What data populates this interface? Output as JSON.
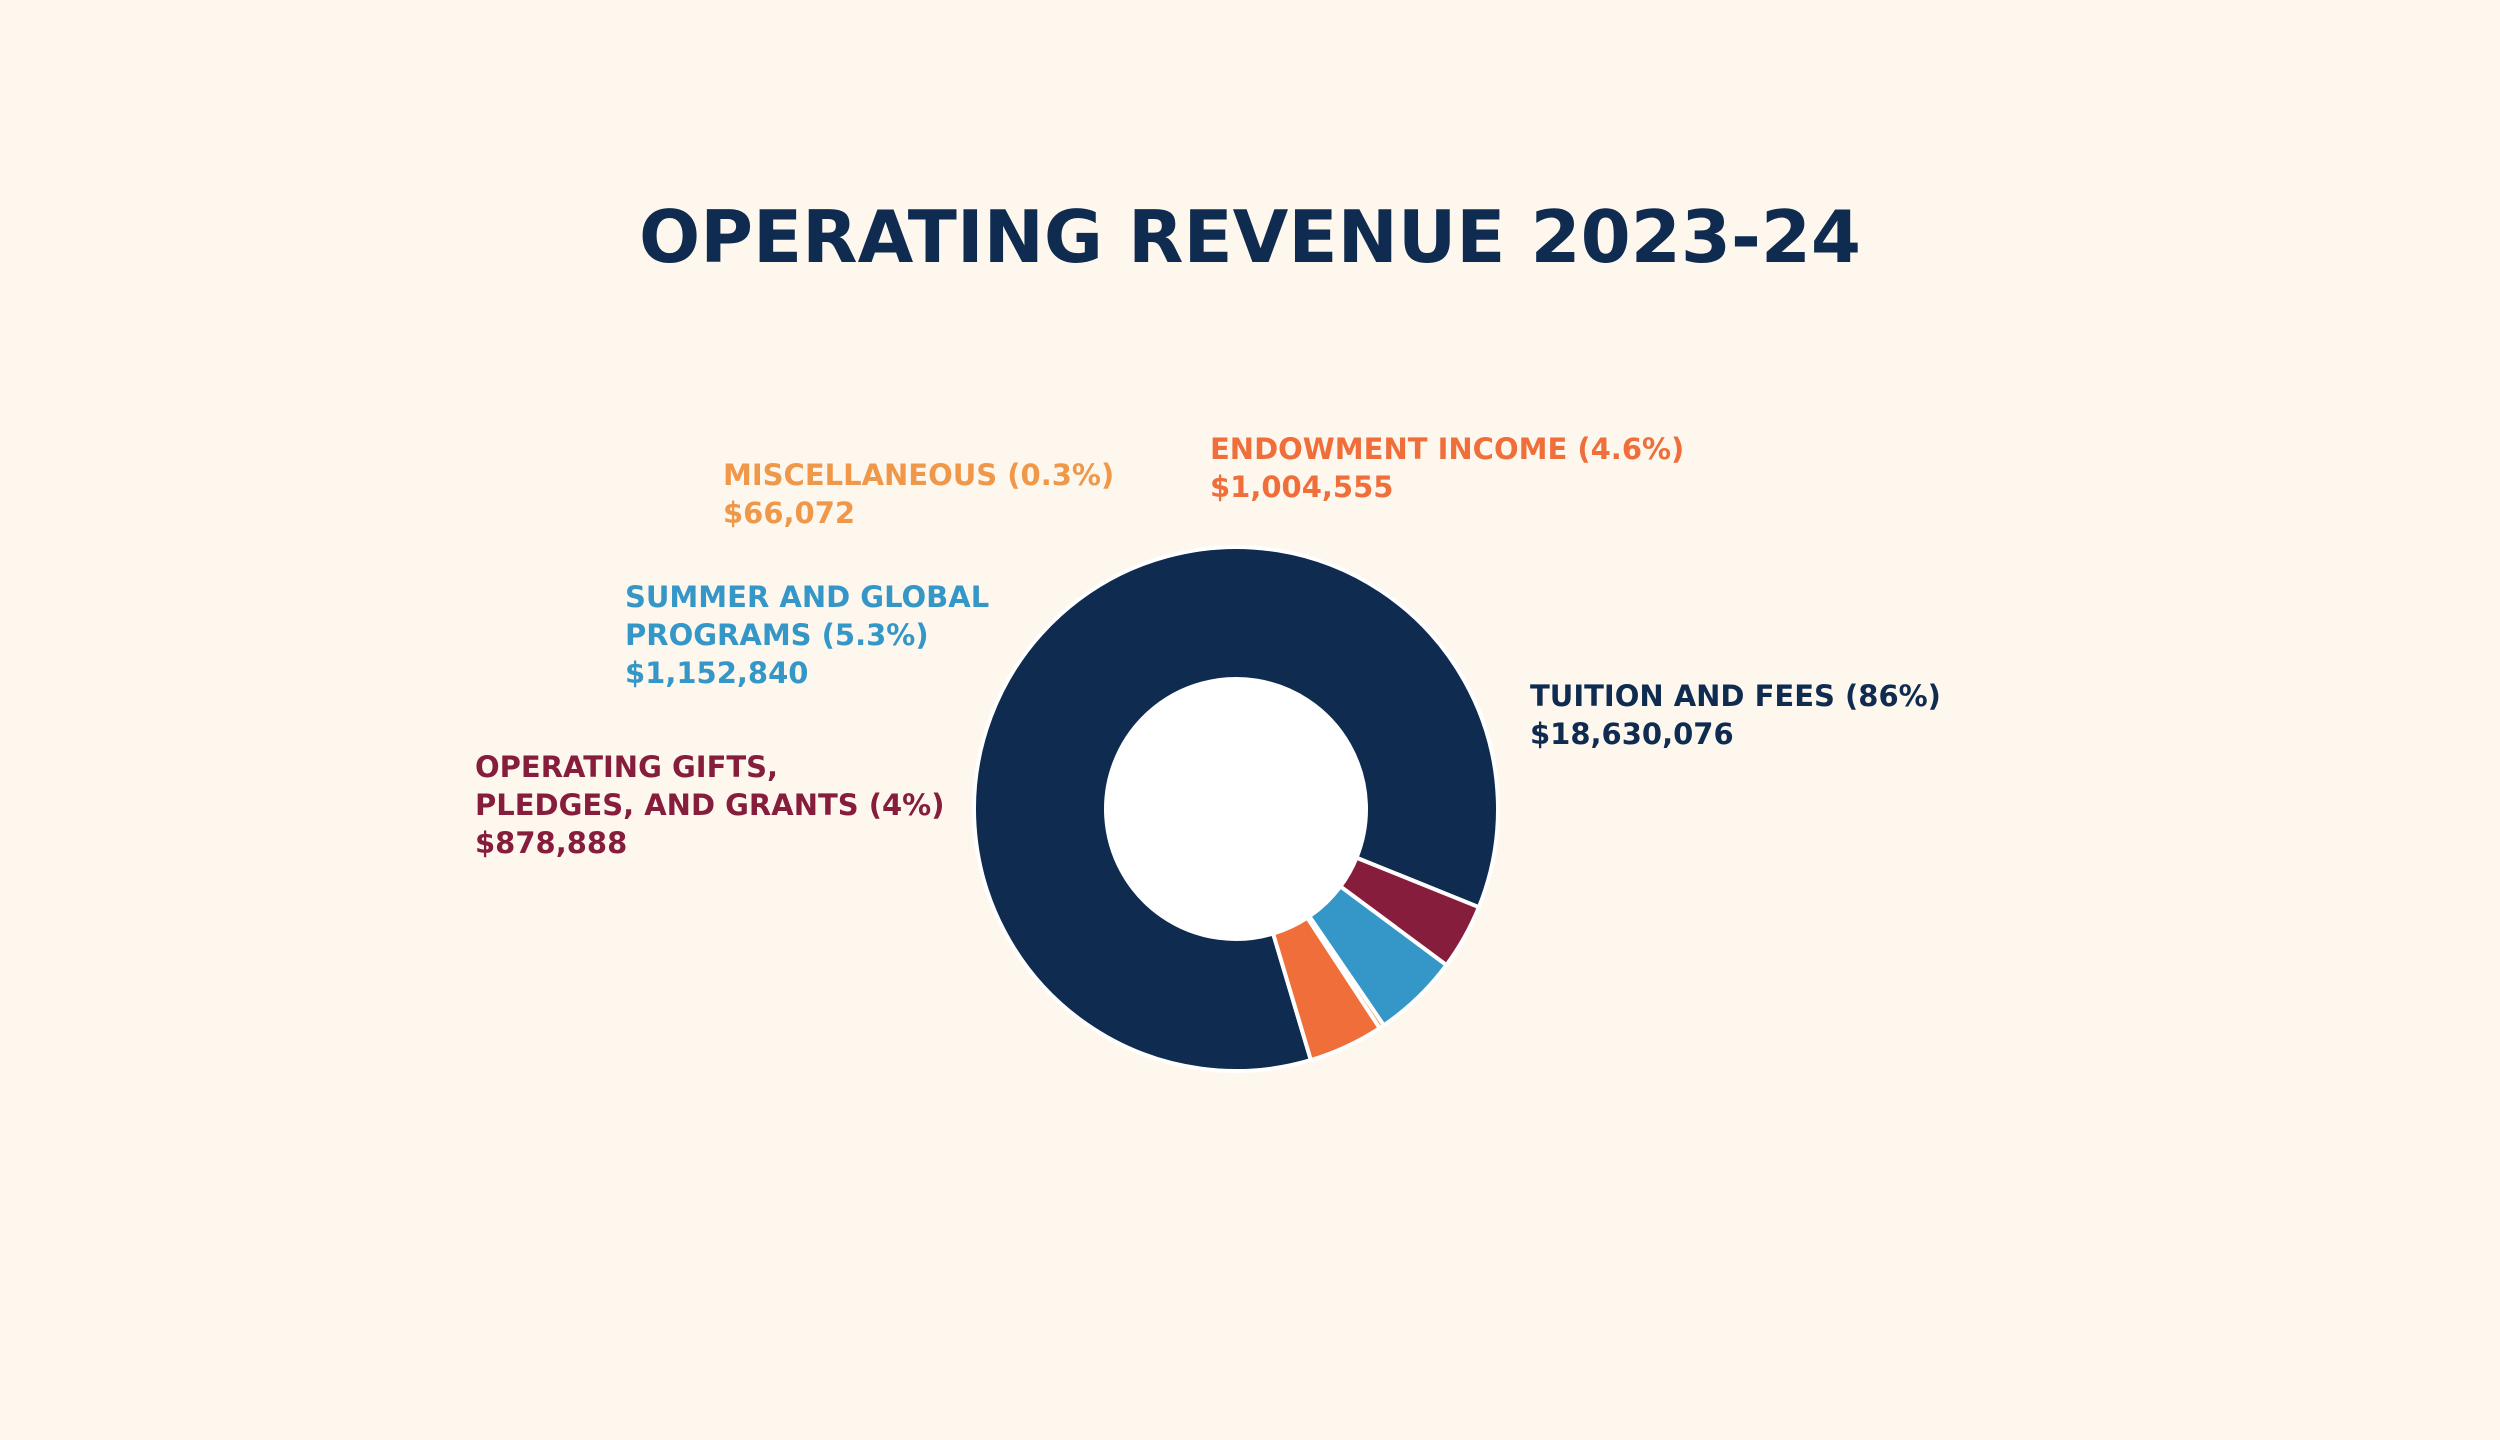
{
  "chart_data": {
    "type": "pie",
    "title": "OPERATING REVENUE 2023-24",
    "categories": [
      "TUITION AND FEES",
      "OPERATING GIFTS, PLEDGES, AND GRANTS",
      "SUMMER AND GLOBAL PROGRAMS",
      "MISCELLANEOUS",
      "ENDOWMENT INCOME"
    ],
    "values": [
      18630076,
      878888,
      1152840,
      66072,
      1004555
    ],
    "colors": [
      "#0f2b50",
      "#861d3d",
      "#3596c8",
      "#f0984a",
      "#ef6e3a"
    ],
    "labels": {
      "tuition": {
        "line1": "TUITION AND FEES (86%)",
        "line2": "$18,630,076"
      },
      "endowment": {
        "line1": "ENDOWMENT INCOME (4.6%)",
        "line2": "$1,004,555"
      },
      "misc": {
        "line1": "MISCELLANEOUS (0.3%)",
        "line2": "$66,072"
      },
      "summer": {
        "line1": "SUMMER AND GLOBAL",
        "line2": "PROGRAMS (5.3%)",
        "line3": "$1,152,840"
      },
      "gifts": {
        "line1": "OPERATING GIFTS,",
        "line2": "PLEDGES, AND GRANTS (4%)",
        "line3": "$878,888"
      }
    },
    "donut": true,
    "legend": "none"
  }
}
